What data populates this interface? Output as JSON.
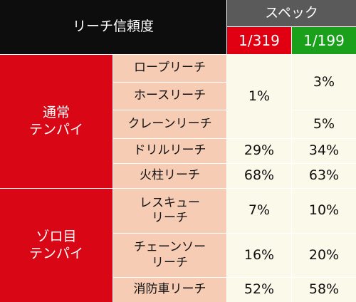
{
  "header": {
    "title": "リーチ信頼度",
    "spec": "スペック",
    "col1": "1/319",
    "col2": "1/199"
  },
  "groups": [
    {
      "label": "通常\nテンパイ"
    },
    {
      "label": "ゾロ目\nテンパイ"
    }
  ],
  "rows": [
    {
      "name": "ロープリーチ"
    },
    {
      "name": "ホースリーチ"
    },
    {
      "name": "クレーンリーチ"
    },
    {
      "name": "ドリルリーチ",
      "v1": "29%",
      "v2": "34%"
    },
    {
      "name": "火柱リーチ",
      "v1": "68%",
      "v2": "63%"
    },
    {
      "name": "レスキュー\nリーチ",
      "v1": "7%",
      "v2": "10%"
    },
    {
      "name": "チェーンソー\nリーチ",
      "v1": "16%",
      "v2": "20%"
    },
    {
      "name": "消防車リーチ",
      "v1": "52%",
      "v2": "58%"
    }
  ],
  "merged": {
    "col1_rows_1_3": "1%",
    "col2_rows_1_2": "3%",
    "col2_row_3": "5%"
  }
}
